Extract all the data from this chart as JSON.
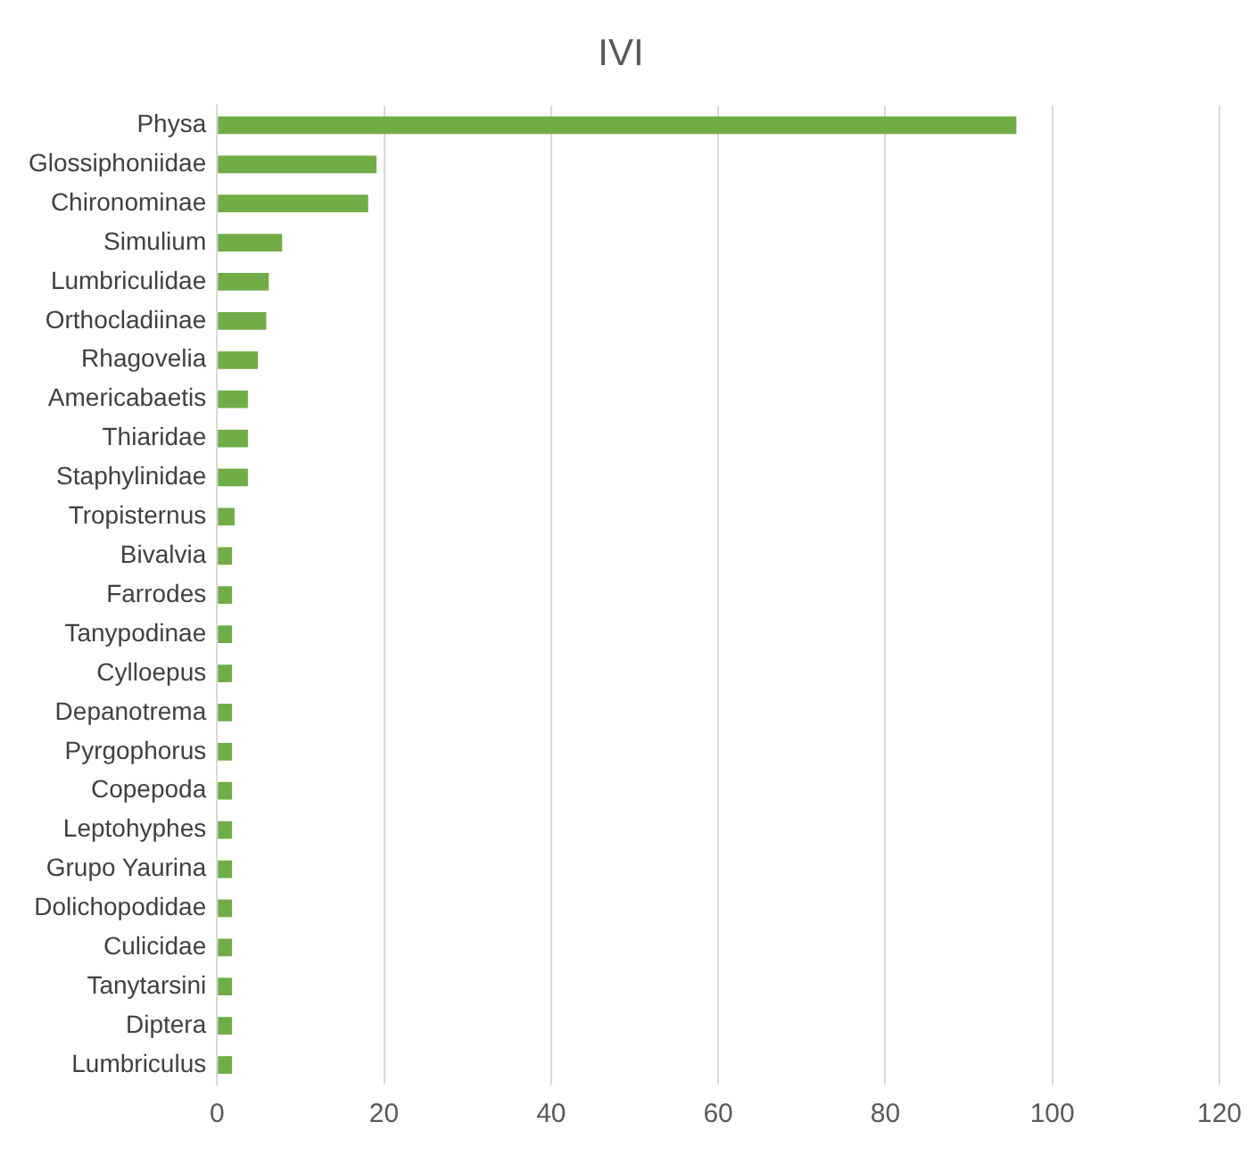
{
  "chart_data": {
    "type": "bar",
    "orientation": "horizontal",
    "title": "IVI",
    "categories": [
      "Physa",
      "Glossiphoniidae",
      "Chironominae",
      "Simulium",
      "Lumbriculidae",
      "Orthocladiinae",
      "Rhagovelia",
      "Americabaetis",
      "Thiaridae",
      "Staphylinidae",
      "Tropisternus",
      "Bivalvia",
      "Farrodes",
      "Tanypodinae",
      "Cylloepus",
      "Depanotrema",
      "Pyrgophorus",
      "Copepoda",
      "Leptohyphes",
      "Grupo Yaurina",
      "Dolichopodidae",
      "Culicidae",
      "Tanytarsini",
      "Diptera",
      "Lumbriculus"
    ],
    "values": [
      95.7,
      19.1,
      18.1,
      7.8,
      6.2,
      5.9,
      4.9,
      3.7,
      3.7,
      3.7,
      2.1,
      1.8,
      1.8,
      1.8,
      1.8,
      1.8,
      1.8,
      1.8,
      1.8,
      1.8,
      1.8,
      1.8,
      1.8,
      1.8,
      1.8
    ],
    "color": "#70ad47",
    "xlim": [
      0,
      120
    ],
    "xticks": [
      0,
      20,
      40,
      60,
      80,
      100,
      120
    ],
    "grid": "x",
    "legend": false
  }
}
